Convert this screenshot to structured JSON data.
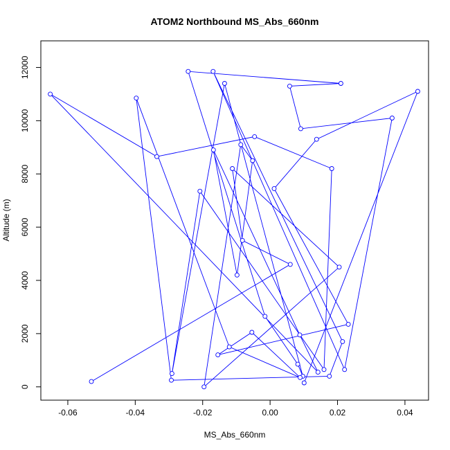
{
  "chart_data": {
    "type": "line",
    "title": "ATOM2 Northbound MS_Abs_660nm",
    "xlabel": "MS_Abs_660nm",
    "ylabel": "Altitude (m)",
    "xlim": [
      -0.068,
      0.047
    ],
    "ylim": [
      -500,
      13000
    ],
    "x_ticks": [
      -0.06,
      -0.04,
      -0.02,
      0.0,
      0.02,
      0.04
    ],
    "x_tick_labels": [
      "-0.06",
      "-0.04",
      "-0.02",
      "0.00",
      "0.02",
      "0.04"
    ],
    "y_ticks": [
      0,
      2000,
      4000,
      6000,
      8000,
      10000,
      12000
    ],
    "y_tick_labels": [
      "0",
      "2000",
      "4000",
      "6000",
      "8000",
      "10000",
      "12000"
    ],
    "line_color": "#0000ff",
    "marker": "open-circle",
    "grid": false,
    "legend": "none",
    "series": [
      {
        "x": [
          -0.053,
          0.006,
          -0.0082,
          -0.0112,
          0.0205,
          -0.0196,
          -0.0087,
          -0.0052,
          -0.0098,
          -0.0168,
          0.0088,
          0.0142,
          -0.0652,
          -0.0336,
          -0.0046,
          0.0183,
          0.016,
          -0.0208,
          -0.0291,
          -0.0135,
          0.0097,
          0.0082,
          -0.0015,
          -0.0243,
          0.021,
          0.0058,
          0.0091,
          0.0362,
          0.0221,
          -0.0169,
          0.0215,
          0.0176,
          -0.0293,
          -0.0397,
          -0.0121,
          0.0089,
          -0.0054,
          -0.0155,
          0.0232,
          0.0012,
          0.0138,
          0.0438,
          0.0101
        ],
        "y": [
          200,
          4600,
          5500,
          8200,
          4500,
          -0.0,
          9100,
          8500,
          4200,
          8900,
          1950,
          550,
          11000,
          8650,
          9400,
          8200,
          650,
          7350,
          500,
          11400,
          400,
          850,
          2650,
          11850,
          11400,
          11300,
          9700,
          10100,
          650,
          11850,
          1700,
          400,
          250,
          10850,
          1500,
          350,
          2050,
          1200,
          2350,
          7450,
          9300,
          11100,
          150
        ]
      }
    ]
  }
}
